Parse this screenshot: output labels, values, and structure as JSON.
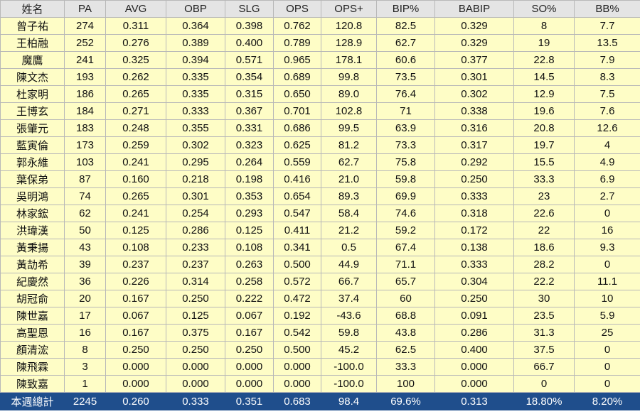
{
  "headers": [
    "姓名",
    "PA",
    "AVG",
    "OBP",
    "SLG",
    "OPS",
    "OPS+",
    "BIP%",
    "BABIP",
    "SO%",
    "BB%"
  ],
  "rows": [
    [
      "曾子祐",
      "274",
      "0.311",
      "0.364",
      "0.398",
      "0.762",
      "120.8",
      "82.5",
      "0.329",
      "8",
      "7.7"
    ],
    [
      "王柏融",
      "252",
      "0.276",
      "0.389",
      "0.400",
      "0.789",
      "128.9",
      "62.7",
      "0.329",
      "19",
      "13.5"
    ],
    [
      "魔鷹",
      "241",
      "0.325",
      "0.394",
      "0.571",
      "0.965",
      "178.1",
      "60.6",
      "0.377",
      "22.8",
      "7.9"
    ],
    [
      "陳文杰",
      "193",
      "0.262",
      "0.335",
      "0.354",
      "0.689",
      "99.8",
      "73.5",
      "0.301",
      "14.5",
      "8.3"
    ],
    [
      "杜家明",
      "186",
      "0.265",
      "0.335",
      "0.315",
      "0.650",
      "89.0",
      "76.4",
      "0.302",
      "12.9",
      "7.5"
    ],
    [
      "王博玄",
      "184",
      "0.271",
      "0.333",
      "0.367",
      "0.701",
      "102.8",
      "71",
      "0.338",
      "19.6",
      "7.6"
    ],
    [
      "張肇元",
      "183",
      "0.248",
      "0.355",
      "0.331",
      "0.686",
      "99.5",
      "63.9",
      "0.316",
      "20.8",
      "12.6"
    ],
    [
      "藍寅倫",
      "173",
      "0.259",
      "0.302",
      "0.323",
      "0.625",
      "81.2",
      "73.3",
      "0.317",
      "19.7",
      "4"
    ],
    [
      "郭永維",
      "103",
      "0.241",
      "0.295",
      "0.264",
      "0.559",
      "62.7",
      "75.8",
      "0.292",
      "15.5",
      "4.9"
    ],
    [
      "葉保弟",
      "87",
      "0.160",
      "0.218",
      "0.198",
      "0.416",
      "21.0",
      "59.8",
      "0.250",
      "33.3",
      "6.9"
    ],
    [
      "吳明鴻",
      "74",
      "0.265",
      "0.301",
      "0.353",
      "0.654",
      "89.3",
      "69.9",
      "0.333",
      "23",
      "2.7"
    ],
    [
      "林家鋐",
      "62",
      "0.241",
      "0.254",
      "0.293",
      "0.547",
      "58.4",
      "74.6",
      "0.318",
      "22.6",
      "0"
    ],
    [
      "洪瑋漢",
      "50",
      "0.125",
      "0.286",
      "0.125",
      "0.411",
      "21.2",
      "59.2",
      "0.172",
      "22",
      "16"
    ],
    [
      "黃秉揚",
      "43",
      "0.108",
      "0.233",
      "0.108",
      "0.341",
      "0.5",
      "67.4",
      "0.138",
      "18.6",
      "9.3"
    ],
    [
      "黃劼希",
      "39",
      "0.237",
      "0.237",
      "0.263",
      "0.500",
      "44.9",
      "71.1",
      "0.333",
      "28.2",
      "0"
    ],
    [
      "紀慶然",
      "36",
      "0.226",
      "0.314",
      "0.258",
      "0.572",
      "66.7",
      "65.7",
      "0.304",
      "22.2",
      "11.1"
    ],
    [
      "胡冠俞",
      "20",
      "0.167",
      "0.250",
      "0.222",
      "0.472",
      "37.4",
      "60",
      "0.250",
      "30",
      "10"
    ],
    [
      "陳世嘉",
      "17",
      "0.067",
      "0.125",
      "0.067",
      "0.192",
      "-43.6",
      "68.8",
      "0.091",
      "23.5",
      "5.9"
    ],
    [
      "高聖恩",
      "16",
      "0.167",
      "0.375",
      "0.167",
      "0.542",
      "59.8",
      "43.8",
      "0.286",
      "31.3",
      "25"
    ],
    [
      "顏清浤",
      "8",
      "0.250",
      "0.250",
      "0.250",
      "0.500",
      "45.2",
      "62.5",
      "0.400",
      "37.5",
      "0"
    ],
    [
      "陳飛霖",
      "3",
      "0.000",
      "0.000",
      "0.000",
      "0.000",
      "-100.0",
      "33.3",
      "0.000",
      "66.7",
      "0"
    ],
    [
      "陳致嘉",
      "1",
      "0.000",
      "0.000",
      "0.000",
      "0.000",
      "-100.0",
      "100",
      "0.000",
      "0",
      "0"
    ]
  ],
  "total": [
    "本週總計",
    "2245",
    "0.260",
    "0.333",
    "0.351",
    "0.683",
    "98.4",
    "69.6%",
    "0.313",
    "18.80%",
    "8.20%"
  ]
}
